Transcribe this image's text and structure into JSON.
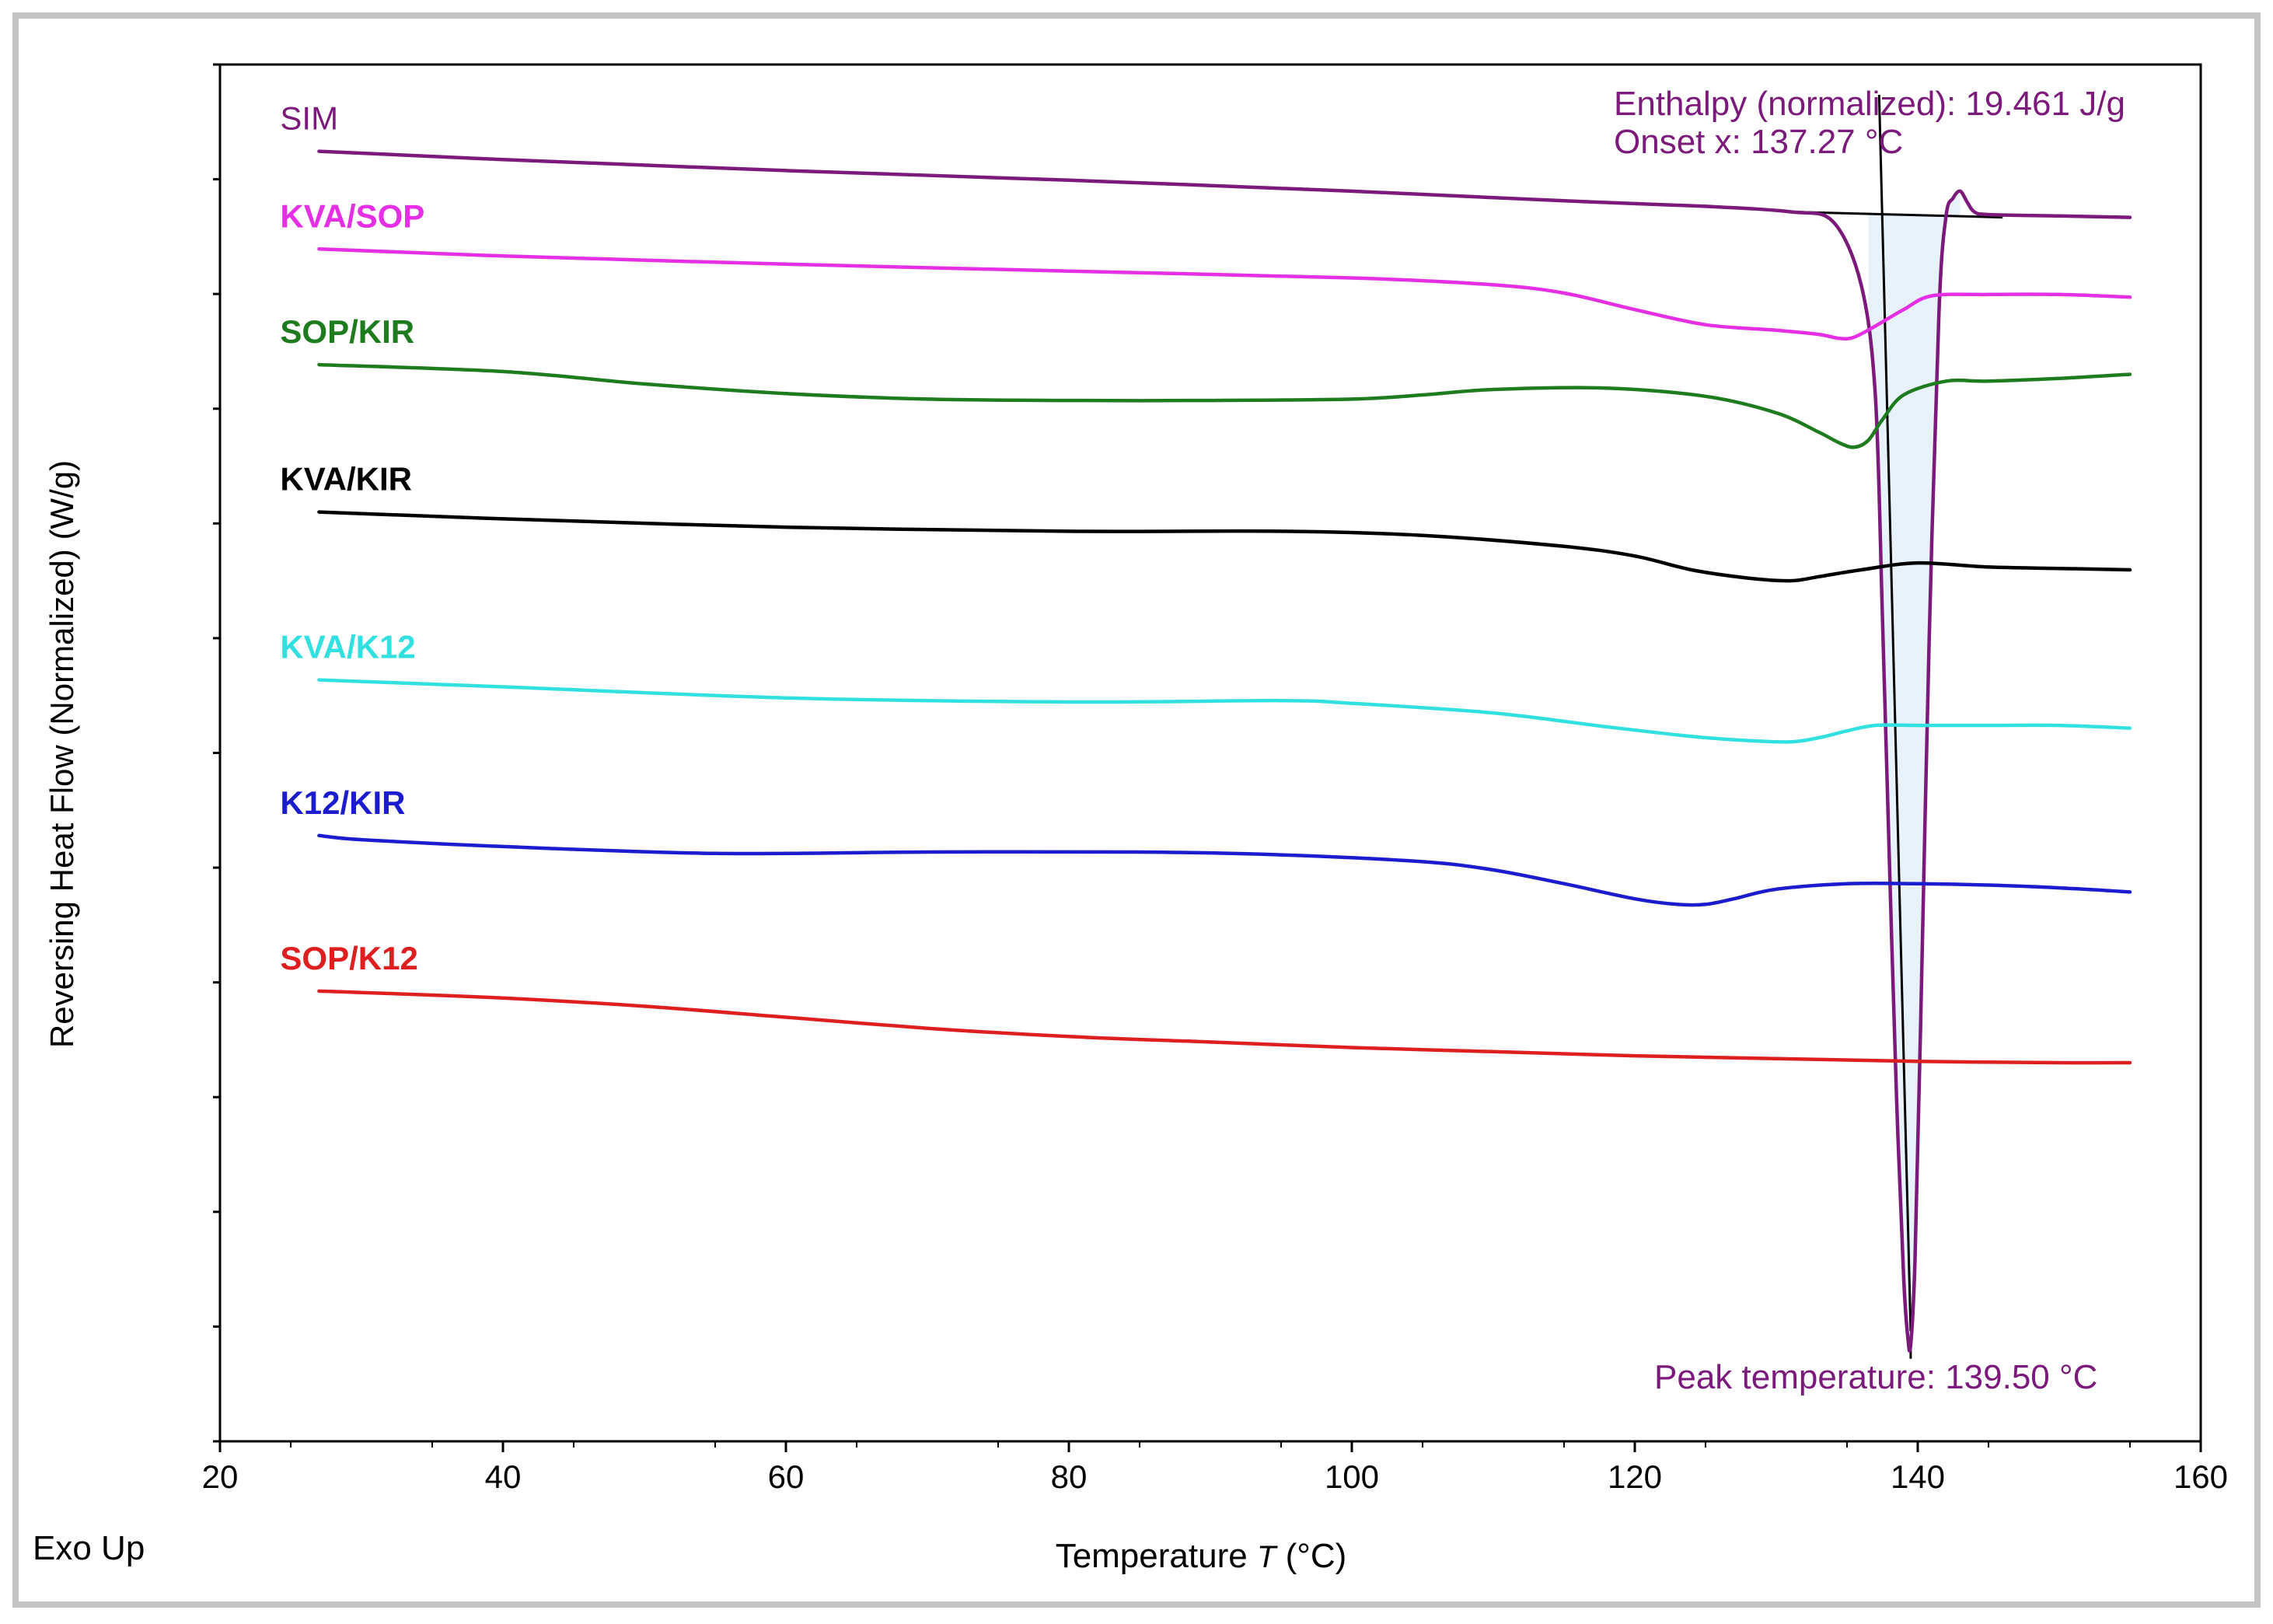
{
  "chart_data": {
    "type": "line",
    "title": "",
    "xlabel": "Temperature T (°C)",
    "xlabel_prefix": "Temperature",
    "xlabel_var": "T",
    "xlabel_unit": "(°C)",
    "ylabel": "Reversing Heat Flow (Normalized)  (W/g)",
    "xlim": [
      20,
      160
    ],
    "ylim": [
      0,
      1
    ],
    "x_ticks": [
      20,
      40,
      60,
      80,
      100,
      120,
      140,
      160
    ],
    "x_tick_labels": [
      "20",
      "40",
      "60",
      "80",
      "100",
      "120",
      "140",
      "160"
    ],
    "y_tick_count": 13,
    "grid": false,
    "corner_label": "Exo Up",
    "series": [
      {
        "name": "SIM",
        "color": "#7b1a7b",
        "bold": false,
        "x": [
          27,
          40,
          60,
          80,
          100,
          115,
          125,
          131,
          134,
          136,
          137,
          137.5,
          138,
          138.5,
          139,
          139.3,
          139.5,
          139.8,
          140.2,
          140.8,
          141.5,
          142,
          142.5,
          143,
          143.5,
          144,
          145,
          150,
          155
        ],
        "y": [
          0.937,
          0.931,
          0.923,
          0.916,
          0.908,
          0.901,
          0.897,
          0.893,
          0.886,
          0.84,
          0.76,
          0.6,
          0.42,
          0.25,
          0.12,
          0.075,
          0.07,
          0.13,
          0.3,
          0.58,
          0.82,
          0.89,
          0.903,
          0.908,
          0.9,
          0.893,
          0.891,
          0.89,
          0.889
        ]
      },
      {
        "name": "KVA/SOP",
        "color": "#e52fe5",
        "bold": true,
        "x": [
          27,
          40,
          60,
          80,
          100,
          110,
          115,
          120,
          125,
          130,
          133,
          134.5,
          135.5,
          137,
          139,
          141,
          145,
          150,
          155
        ],
        "y": [
          0.866,
          0.861,
          0.855,
          0.85,
          0.845,
          0.84,
          0.834,
          0.822,
          0.811,
          0.807,
          0.804,
          0.801,
          0.802,
          0.81,
          0.822,
          0.832,
          0.833,
          0.833,
          0.831
        ]
      },
      {
        "name": "SOP/KIR",
        "color": "#1e7b1e",
        "bold": true,
        "x": [
          27,
          40,
          50,
          60,
          70,
          80,
          90,
          100,
          105,
          110,
          118,
          125,
          130,
          133,
          134.5,
          135.5,
          136.5,
          137.5,
          139,
          142,
          145,
          150,
          155
        ],
        "y": [
          0.782,
          0.777,
          0.768,
          0.761,
          0.757,
          0.756,
          0.756,
          0.757,
          0.76,
          0.764,
          0.765,
          0.759,
          0.747,
          0.733,
          0.725,
          0.722,
          0.727,
          0.742,
          0.76,
          0.77,
          0.77,
          0.772,
          0.775
        ]
      },
      {
        "name": "KVA/KIR",
        "color": "#000000",
        "bold": true,
        "x": [
          27,
          40,
          60,
          80,
          95,
          105,
          115,
          120,
          124,
          128,
          131,
          133,
          136,
          140,
          145,
          150,
          155
        ],
        "y": [
          0.675,
          0.67,
          0.664,
          0.661,
          0.661,
          0.658,
          0.65,
          0.643,
          0.633,
          0.627,
          0.625,
          0.628,
          0.633,
          0.638,
          0.635,
          0.634,
          0.633
        ]
      },
      {
        "name": "KVA/K12",
        "color": "#33e0e0",
        "bold": true,
        "x": [
          27,
          40,
          60,
          80,
          95,
          100,
          110,
          118,
          124,
          128,
          131,
          133,
          135,
          137,
          140,
          145,
          150,
          155
        ],
        "y": [
          0.553,
          0.548,
          0.54,
          0.537,
          0.538,
          0.536,
          0.529,
          0.519,
          0.512,
          0.509,
          0.508,
          0.511,
          0.516,
          0.52,
          0.52,
          0.52,
          0.52,
          0.518
        ]
      },
      {
        "name": "K12/KIR",
        "color": "#1c1ccf",
        "bold": true,
        "x": [
          27,
          30,
          40,
          55,
          70,
          85,
          95,
          105,
          110,
          115,
          120,
          123,
          125,
          127,
          130,
          135,
          140,
          145,
          150,
          155
        ],
        "y": [
          0.44,
          0.437,
          0.432,
          0.427,
          0.428,
          0.428,
          0.426,
          0.421,
          0.415,
          0.405,
          0.394,
          0.39,
          0.39,
          0.394,
          0.401,
          0.405,
          0.405,
          0.404,
          0.402,
          0.399
        ]
      },
      {
        "name": "SOP/K12",
        "color": "#dd1f1f",
        "bold": true,
        "x": [
          27,
          30,
          40,
          50,
          60,
          70,
          80,
          90,
          100,
          110,
          120,
          130,
          140,
          150,
          155
        ],
        "y": [
          0.327,
          0.326,
          0.322,
          0.316,
          0.308,
          0.3,
          0.294,
          0.29,
          0.286,
          0.283,
          0.28,
          0.278,
          0.276,
          0.275,
          0.275
        ]
      }
    ],
    "annotations": {
      "enthalpy": "Enthalpy (normalized): 19.461 J/g",
      "onset": "Onset x: 137.27 °C",
      "peak": "Peak temperature: 139.50 °C",
      "color": "#7b1a7b",
      "fill_color": "#e8f2fb",
      "onset_x": 137.27,
      "peak_x": 139.5,
      "peak_y": 0.07,
      "baseline_x": [
        131,
        146
      ],
      "baseline_y": [
        0.893,
        0.889
      ],
      "integration_x_range": [
        136.5,
        143
      ]
    }
  }
}
